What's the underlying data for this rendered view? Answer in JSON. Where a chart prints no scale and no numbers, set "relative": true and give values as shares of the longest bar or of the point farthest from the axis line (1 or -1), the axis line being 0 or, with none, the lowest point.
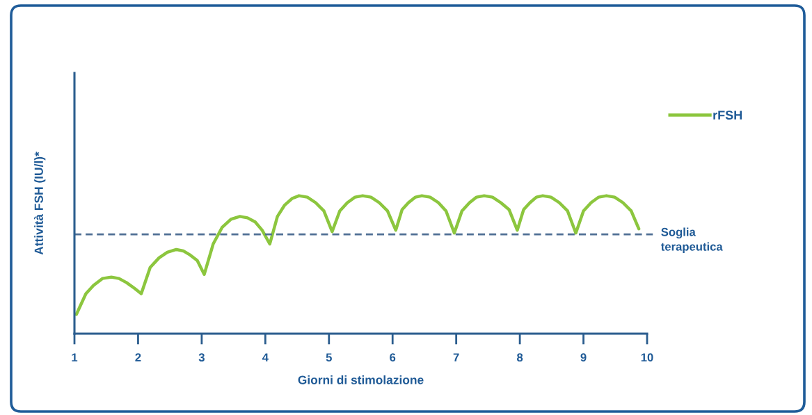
{
  "chart_data": {
    "type": "line",
    "relative": true,
    "xlabel": "Giorni di stimolazione",
    "ylabel": "Attività FSH (IU/l)*",
    "xlim": [
      1,
      10
    ],
    "xticks": [
      1,
      2,
      3,
      4,
      5,
      6,
      7,
      8,
      9,
      10
    ],
    "x": [
      1.03,
      1.18,
      1.3,
      1.44,
      1.58,
      1.7,
      1.82,
      1.94,
      2.05,
      2.19,
      2.33,
      2.46,
      2.6,
      2.71,
      2.82,
      2.93,
      3.04,
      3.18,
      3.32,
      3.46,
      3.6,
      3.72,
      3.84,
      3.95,
      4.07,
      4.19,
      4.3,
      4.42,
      4.53,
      4.66,
      4.79,
      4.92,
      5.05,
      5.17,
      5.29,
      5.41,
      5.53,
      5.66,
      5.79,
      5.92,
      6.05,
      6.15,
      6.25,
      6.36,
      6.46,
      6.59,
      6.72,
      6.84,
      6.97,
      7.09,
      7.21,
      7.32,
      7.44,
      7.57,
      7.7,
      7.83,
      7.96,
      8.06,
      8.16,
      8.26,
      8.36,
      8.49,
      8.62,
      8.75,
      8.88,
      9.0,
      9.12,
      9.24,
      9.36,
      9.49,
      9.62,
      9.75,
      9.87
    ],
    "series": [
      {
        "name": "rFSH",
        "color": "#8cc63e",
        "values": [
          0.14,
          0.29,
          0.35,
          0.4,
          0.41,
          0.4,
          0.37,
          0.33,
          0.29,
          0.48,
          0.55,
          0.59,
          0.61,
          0.6,
          0.57,
          0.53,
          0.43,
          0.65,
          0.77,
          0.83,
          0.85,
          0.84,
          0.81,
          0.75,
          0.65,
          0.85,
          0.93,
          0.98,
          1.0,
          0.99,
          0.95,
          0.89,
          0.74,
          0.89,
          0.95,
          0.99,
          1.0,
          0.99,
          0.95,
          0.89,
          0.75,
          0.9,
          0.95,
          0.99,
          1.0,
          0.99,
          0.95,
          0.89,
          0.73,
          0.89,
          0.95,
          0.99,
          1.0,
          0.99,
          0.95,
          0.9,
          0.75,
          0.9,
          0.95,
          0.99,
          1.0,
          0.99,
          0.95,
          0.89,
          0.73,
          0.89,
          0.95,
          0.99,
          1.0,
          0.99,
          0.95,
          0.89,
          0.76
        ]
      }
    ],
    "ref_lines": [
      {
        "axis": "y",
        "value": 0.72,
        "label": "Soglia\nterapeutica",
        "color": "#4f6f94",
        "line_style": "dashed"
      }
    ],
    "legend": "top right",
    "marker": "none",
    "line_style": "solid",
    "grid": false
  }
}
